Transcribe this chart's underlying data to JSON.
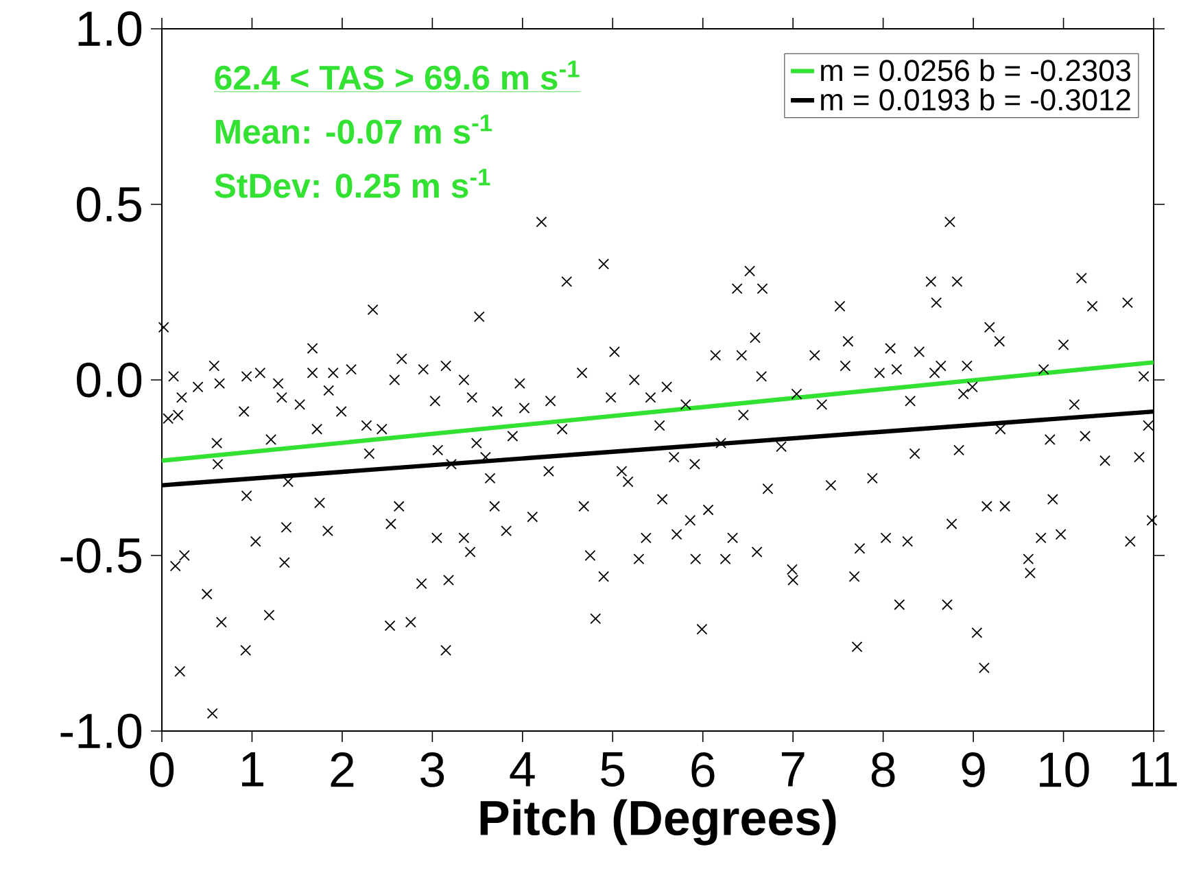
{
  "chart_data": {
    "type": "scatter",
    "xlabel": "Pitch (Degrees)",
    "xlim": [
      0,
      11
    ],
    "xticks": [
      0,
      1,
      2,
      3,
      4,
      5,
      6,
      7,
      8,
      9,
      10,
      11
    ],
    "ylim": [
      -1,
      1
    ],
    "yticks": [
      {
        "value": -1,
        "label": "-1.0"
      },
      {
        "value": -0.5,
        "label": "-0.5"
      },
      {
        "value": 0,
        "label": "0.0"
      },
      {
        "value": 0.5,
        "label": "0.5"
      },
      {
        "value": 1,
        "label": "1.0"
      }
    ],
    "legend": "top right",
    "annotations": [
      "62.4 < TAS > 69.6 m s$^{-1}$",
      "Mean: -0.07 m s$^{-1}$",
      "StDev: 0.25 m s$^{-1}$"
    ],
    "series": [
      {
        "color": "#000000",
        "marker": "cross",
        "x": [
          0.02,
          0.07,
          0.13,
          0.18,
          0.2,
          0.15,
          0.25,
          0.22,
          0.4,
          0.5,
          0.56,
          0.58,
          0.66,
          0.64,
          0.61,
          0.62,
          0.93,
          0.94,
          0.91,
          0.94,
          1.04,
          1.09,
          1.19,
          1.21,
          1.29,
          1.33,
          1.36,
          1.38,
          1.4,
          1.53,
          1.67,
          1.67,
          1.72,
          1.75,
          1.84,
          1.85,
          1.9,
          1.99,
          2.1,
          2.27,
          2.3,
          2.34,
          2.44,
          2.54,
          2.53,
          2.58,
          2.66,
          2.63,
          2.76,
          2.88,
          2.9,
          3.03,
          3.06,
          3.05,
          3.15,
          3.15,
          3.18,
          3.21,
          3.35,
          3.35,
          3.42,
          3.44,
          3.49,
          3.52,
          3.59,
          3.64,
          3.69,
          3.72,
          3.82,
          3.89,
          3.97,
          4.02,
          4.11,
          4.21,
          4.29,
          4.31,
          4.44,
          4.49,
          4.66,
          4.68,
          4.75,
          4.81,
          4.9,
          4.9,
          4.98,
          5.02,
          5.1,
          5.17,
          5.24,
          5.29,
          5.37,
          5.42,
          5.52,
          5.55,
          5.6,
          5.68,
          5.71,
          5.81,
          5.86,
          5.91,
          5.92,
          5.99,
          6.06,
          6.14,
          6.2,
          6.25,
          6.33,
          6.38,
          6.43,
          6.45,
          6.52,
          6.58,
          6.6,
          6.65,
          6.66,
          6.72,
          6.87,
          6.99,
          7.0,
          7.04,
          7.24,
          7.32,
          7.42,
          7.52,
          7.58,
          7.61,
          7.68,
          7.71,
          7.74,
          7.88,
          7.96,
          8.03,
          8.08,
          8.15,
          8.18,
          8.27,
          8.3,
          8.35,
          8.4,
          8.53,
          8.57,
          8.59,
          8.64,
          8.71,
          8.74,
          8.76,
          8.82,
          8.84,
          8.89,
          8.93,
          8.99,
          9.04,
          9.12,
          9.15,
          9.18,
          9.29,
          9.3,
          9.35,
          9.61,
          9.63,
          9.75,
          9.78,
          9.85,
          9.88,
          9.97,
          10.0,
          10.12,
          10.2,
          10.24,
          10.32,
          10.46,
          10.71,
          10.74,
          10.84,
          10.89,
          10.94,
          10.98
        ],
        "values": [
          0.15,
          -0.11,
          0.01,
          -0.1,
          -0.83,
          -0.53,
          -0.5,
          -0.05,
          -0.02,
          -0.61,
          -0.95,
          0.04,
          -0.69,
          -0.01,
          -0.18,
          -0.24,
          -0.77,
          0.01,
          -0.09,
          -0.33,
          -0.46,
          0.02,
          -0.67,
          -0.17,
          -0.01,
          -0.05,
          -0.52,
          -0.42,
          -0.29,
          -0.07,
          0.09,
          0.02,
          -0.14,
          -0.35,
          -0.43,
          -0.03,
          0.02,
          -0.09,
          0.03,
          -0.13,
          -0.21,
          0.2,
          -0.14,
          -0.41,
          -0.7,
          0.0,
          0.06,
          -0.36,
          -0.69,
          -0.58,
          0.03,
          -0.06,
          -0.2,
          -0.45,
          0.04,
          -0.77,
          -0.57,
          -0.24,
          0.0,
          -0.45,
          -0.49,
          -0.05,
          -0.18,
          0.18,
          -0.22,
          -0.28,
          -0.36,
          -0.09,
          -0.43,
          -0.16,
          -0.01,
          -0.08,
          -0.39,
          0.45,
          -0.26,
          -0.06,
          -0.14,
          0.28,
          0.02,
          -0.36,
          -0.5,
          -0.68,
          0.33,
          -0.56,
          -0.05,
          0.08,
          -0.26,
          -0.29,
          0.0,
          -0.51,
          -0.45,
          -0.05,
          -0.13,
          -0.34,
          -0.02,
          -0.22,
          -0.44,
          -0.07,
          -0.4,
          -0.24,
          -0.51,
          -0.71,
          -0.37,
          0.07,
          -0.18,
          -0.51,
          -0.45,
          0.26,
          0.07,
          -0.1,
          0.31,
          0.12,
          -0.49,
          0.01,
          0.26,
          -0.31,
          -0.19,
          -0.54,
          -0.57,
          -0.04,
          0.07,
          -0.07,
          -0.3,
          0.21,
          0.04,
          0.11,
          -0.56,
          -0.76,
          -0.48,
          -0.28,
          0.02,
          -0.45,
          0.09,
          0.03,
          -0.64,
          -0.46,
          -0.06,
          -0.21,
          0.08,
          0.28,
          0.02,
          0.22,
          0.04,
          -0.64,
          0.45,
          -0.41,
          0.28,
          -0.2,
          -0.04,
          0.04,
          -0.02,
          -0.72,
          -0.82,
          -0.36,
          0.15,
          0.11,
          -0.14,
          -0.36,
          -0.51,
          -0.55,
          -0.45,
          0.03,
          -0.17,
          -0.34,
          -0.44,
          0.1,
          -0.07,
          0.29,
          -0.16,
          0.21,
          -0.23,
          0.22,
          -0.46,
          -0.22,
          0.01,
          -0.13,
          -0.4
        ]
      },
      {
        "type": "line",
        "name": "m = 0.0256 b = -0.2303",
        "color": "#33e133",
        "x": [
          0,
          11
        ],
        "values": [
          -0.23,
          0.05
        ]
      },
      {
        "type": "line",
        "name": "m = 0.0193 b = -0.3012",
        "color": "#000000",
        "x": [
          0,
          11
        ],
        "values": [
          -0.3,
          -0.09
        ]
      }
    ]
  }
}
